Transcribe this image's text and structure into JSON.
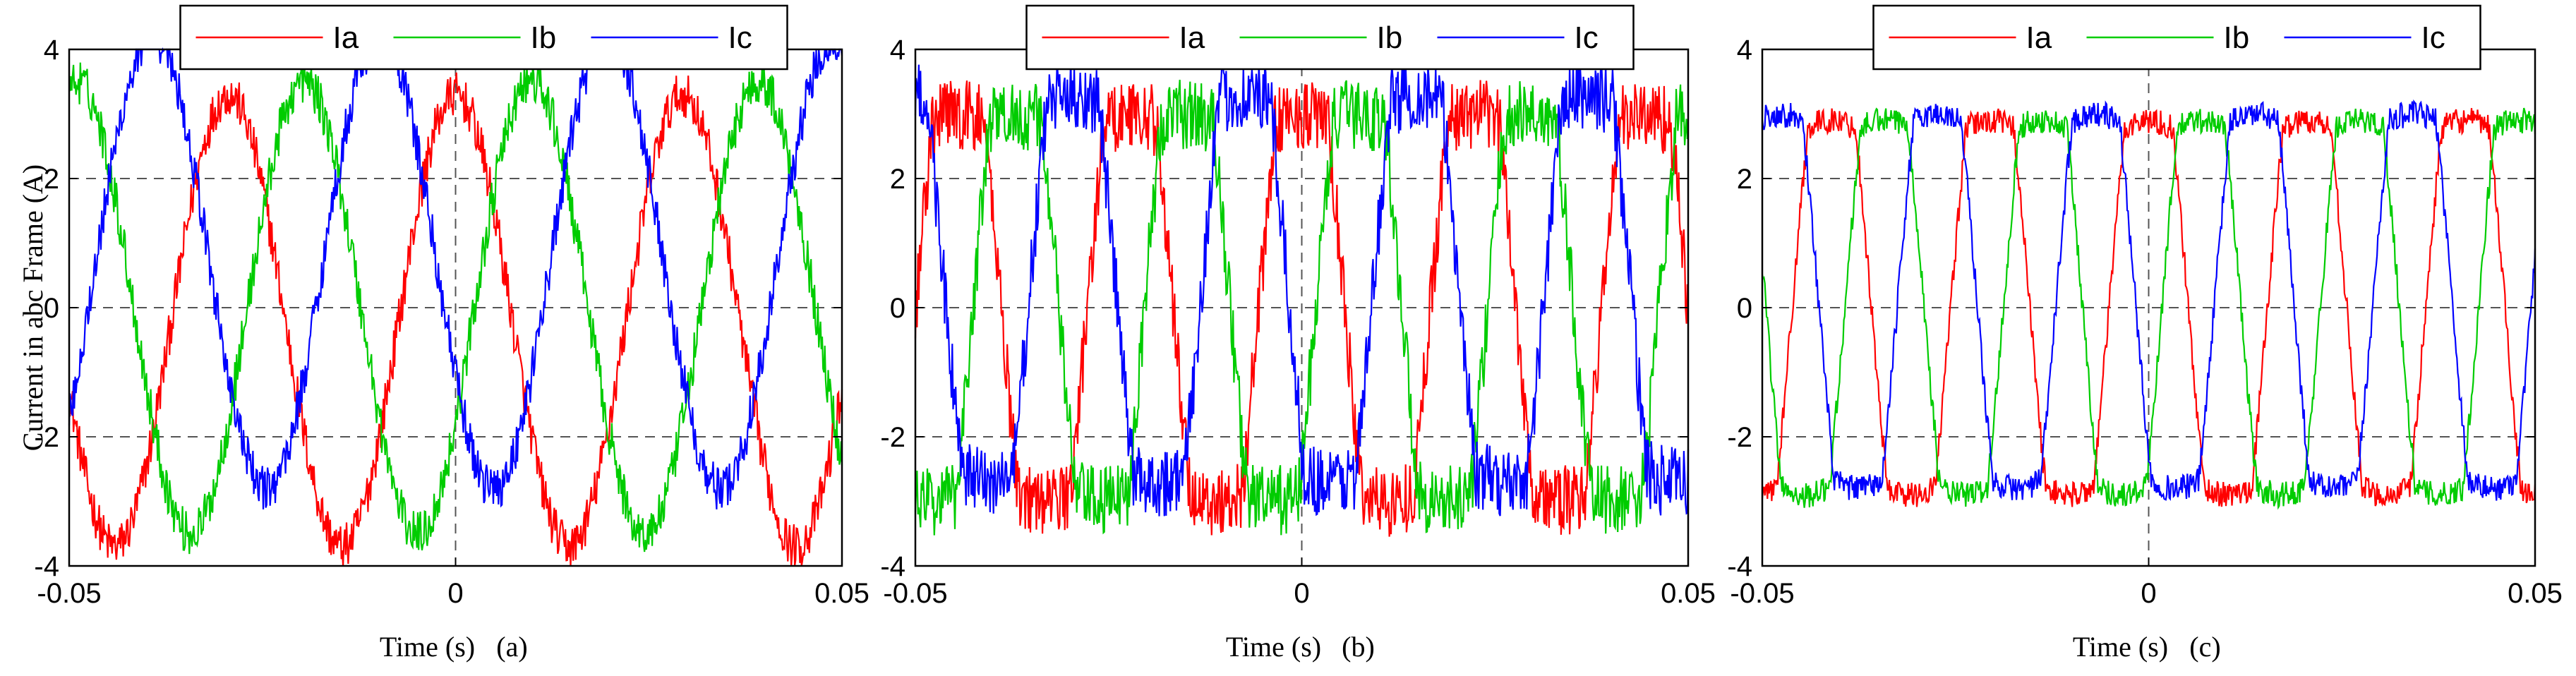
{
  "figure": {
    "ylabel": "Current in abc Frame (A)",
    "colors": {
      "Ia": "#ff0000",
      "Ib": "#00cc00",
      "Ic": "#0000ff"
    }
  },
  "chart_data": [
    {
      "type": "line",
      "panel_label": "(a)",
      "xlabel": "Time (s)",
      "ylabel": "Current in abc Frame (A)",
      "xlim": [
        -0.05,
        0.05
      ],
      "ylim": [
        -4,
        4
      ],
      "xticks": [
        -0.05,
        0,
        0.05
      ],
      "xtick_labels": [
        "-0.05",
        "0",
        "0.05"
      ],
      "yticks": [
        -4,
        -2,
        0,
        2,
        4
      ],
      "ytick_labels": [
        "-4",
        "-2",
        "0",
        "2",
        "4"
      ],
      "ref_lines_y": [
        -2,
        0,
        2
      ],
      "ref_line_x": 0,
      "legend": {
        "placement": "top",
        "entries": [
          "Ia",
          "Ib",
          "Ic"
        ]
      },
      "waveform": {
        "amplitude": 3.5,
        "period_s": 0.0294,
        "phase_offsets_deg": [
          0,
          -120,
          120
        ],
        "ia_phase_deg": 90,
        "dc_offsets": [
          -0.2,
          0.0,
          0.7
        ],
        "noise": 0.35,
        "shape": "sine"
      },
      "series": [
        {
          "name": "Ia",
          "color": "#ff0000"
        },
        {
          "name": "Ib",
          "color": "#00cc00"
        },
        {
          "name": "Ic",
          "color": "#0000ff"
        }
      ]
    },
    {
      "type": "line",
      "panel_label": "(b)",
      "xlabel": "Time (s)",
      "ylabel": "",
      "xlim": [
        -0.05,
        0.05
      ],
      "ylim": [
        -4,
        4
      ],
      "xticks": [
        -0.05,
        0,
        0.05
      ],
      "xtick_labels": [
        "-0.05",
        "0",
        "0.05"
      ],
      "yticks": [
        -4,
        -2,
        0,
        2,
        4
      ],
      "ytick_labels": [
        "-4",
        "-2",
        "0",
        "2",
        "4"
      ],
      "ref_lines_y": [
        -2,
        0,
        2
      ],
      "ref_line_x": 0,
      "legend": {
        "placement": "top",
        "entries": [
          "Ia",
          "Ib",
          "Ic"
        ]
      },
      "waveform": {
        "amplitude": 3.0,
        "period_s": 0.0222,
        "phase_offsets_deg": [
          0,
          -120,
          120
        ],
        "ia_phase_deg": 90,
        "dc_offsets": [
          0.0,
          0.0,
          0.3
        ],
        "noise": 0.55,
        "shape": "trapezoid"
      },
      "series": [
        {
          "name": "Ia",
          "color": "#ff0000"
        },
        {
          "name": "Ib",
          "color": "#00cc00"
        },
        {
          "name": "Ic",
          "color": "#0000ff"
        }
      ]
    },
    {
      "type": "line",
      "panel_label": "(c)",
      "xlabel": "Time (s)",
      "ylabel": "",
      "xlim": [
        -0.05,
        0.05
      ],
      "ylim": [
        -4,
        4
      ],
      "xticks": [
        -0.05,
        0,
        0.05
      ],
      "xtick_labels": [
        "-0.05",
        "0",
        "0.05"
      ],
      "yticks": [
        -4,
        -2,
        0,
        2,
        4
      ],
      "ytick_labels": [
        "-4",
        "-2",
        "0",
        "2",
        "4"
      ],
      "ref_lines_y": [
        -2,
        0,
        2
      ],
      "ref_line_x": 0,
      "legend": {
        "placement": "top",
        "entries": [
          "Ia",
          "Ib",
          "Ic"
        ]
      },
      "waveform": {
        "amplitude": 2.9,
        "period_s": 0.0205,
        "phase_offsets_deg": [
          0,
          -120,
          120
        ],
        "ia_phase_deg": 90,
        "dc_offsets": [
          0.0,
          0.0,
          0.1
        ],
        "noise": 0.2,
        "shape": "trapezoid"
      },
      "series": [
        {
          "name": "Ia",
          "color": "#ff0000"
        },
        {
          "name": "Ib",
          "color": "#00cc00"
        },
        {
          "name": "Ic",
          "color": "#0000ff"
        }
      ]
    }
  ]
}
